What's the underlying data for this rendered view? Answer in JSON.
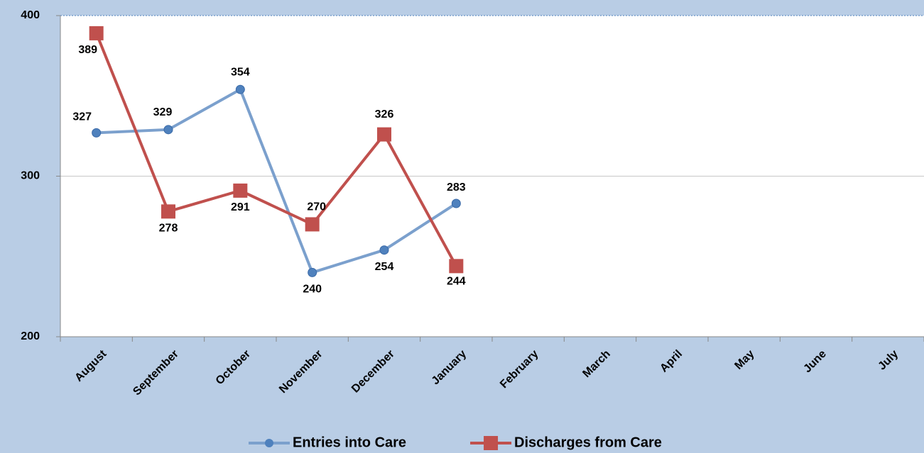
{
  "chart_data": {
    "type": "line",
    "categories": [
      "August",
      "September",
      "October",
      "November",
      "December",
      "January",
      "February",
      "March",
      "April",
      "May",
      "June",
      "July"
    ],
    "series": [
      {
        "name": "Entries into Care",
        "color": "#7ba0cd",
        "marker": "circle",
        "marker_color": "#4f81bd",
        "values": [
          327,
          329,
          354,
          240,
          254,
          283,
          null,
          null,
          null,
          null,
          null,
          null
        ]
      },
      {
        "name": "Discharges from Care",
        "color": "#c0504d",
        "marker": "square",
        "marker_color": "#c0504d",
        "values": [
          389,
          278,
          291,
          270,
          326,
          244,
          null,
          null,
          null,
          null,
          null,
          null
        ]
      }
    ],
    "ylim": [
      200,
      400
    ],
    "yticks": [
      200,
      300,
      400
    ],
    "grid": true,
    "legend": "bottom"
  }
}
